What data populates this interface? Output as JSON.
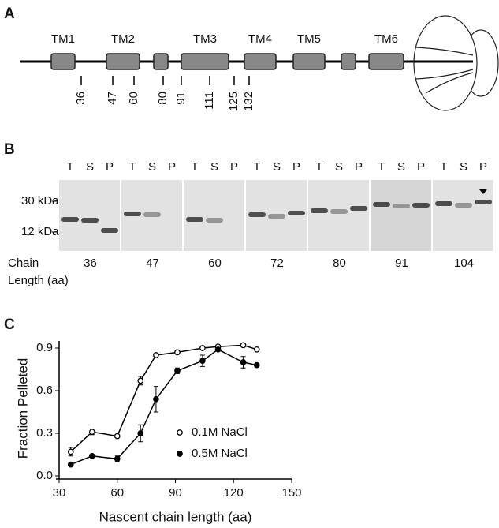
{
  "panel_a": {
    "label": "A",
    "domains": [
      "TM1",
      "TM2",
      "TM3",
      "TM4",
      "TM5",
      "TM6"
    ],
    "positions": [
      "36",
      "47",
      "60",
      "80",
      "91",
      "111",
      "125",
      "132"
    ]
  },
  "panel_b": {
    "label": "B",
    "lane_groups": [
      [
        "T",
        "S",
        "P"
      ],
      [
        "T",
        "S",
        "P"
      ],
      [
        "T",
        "S",
        "P"
      ],
      [
        "T",
        "S",
        "P"
      ],
      [
        "T",
        "S",
        "P"
      ],
      [
        "T",
        "S",
        "P"
      ],
      [
        "T",
        "S",
        "P"
      ]
    ],
    "markers": [
      "30 kDa",
      "12 kDa"
    ],
    "row_label": [
      "Chain",
      "Length (aa)"
    ],
    "chain_lengths": [
      "36",
      "47",
      "60",
      "72",
      "80",
      "91",
      "104"
    ]
  },
  "chart_data": {
    "type": "line",
    "label": "C",
    "x_label": "Nascent chain length (aa)",
    "y_label": "Fraction Pelleted",
    "x": [
      36,
      47,
      60,
      72,
      80,
      91,
      104,
      112,
      125,
      132
    ],
    "series": [
      {
        "name": "0.1M NaCl",
        "color": "#000000",
        "marker": "open",
        "values": [
          0.17,
          0.31,
          0.28,
          0.67,
          0.85,
          0.87,
          0.9,
          0.91,
          0.92,
          0.89
        ],
        "errors": [
          0.03,
          0.02,
          0,
          0.03,
          0,
          0,
          0,
          0,
          0,
          0
        ]
      },
      {
        "name": "0.5M NaCl",
        "color": "#000000",
        "marker": "filled",
        "values": [
          0.08,
          0.14,
          0.12,
          0.3,
          0.54,
          0.74,
          0.81,
          0.89,
          0.8,
          0.78
        ],
        "errors": [
          0,
          0,
          0.02,
          0.06,
          0.09,
          0.02,
          0.04,
          0.01,
          0.04,
          0
        ]
      }
    ],
    "xlim": [
      30,
      150
    ],
    "xticks": [
      30,
      60,
      90,
      120,
      150
    ],
    "ylim": [
      0,
      0.95
    ],
    "yticks": [
      {
        "value": 0,
        "label": "0.0"
      },
      0.3,
      0.6,
      0.9
    ],
    "legend": "center-right"
  }
}
